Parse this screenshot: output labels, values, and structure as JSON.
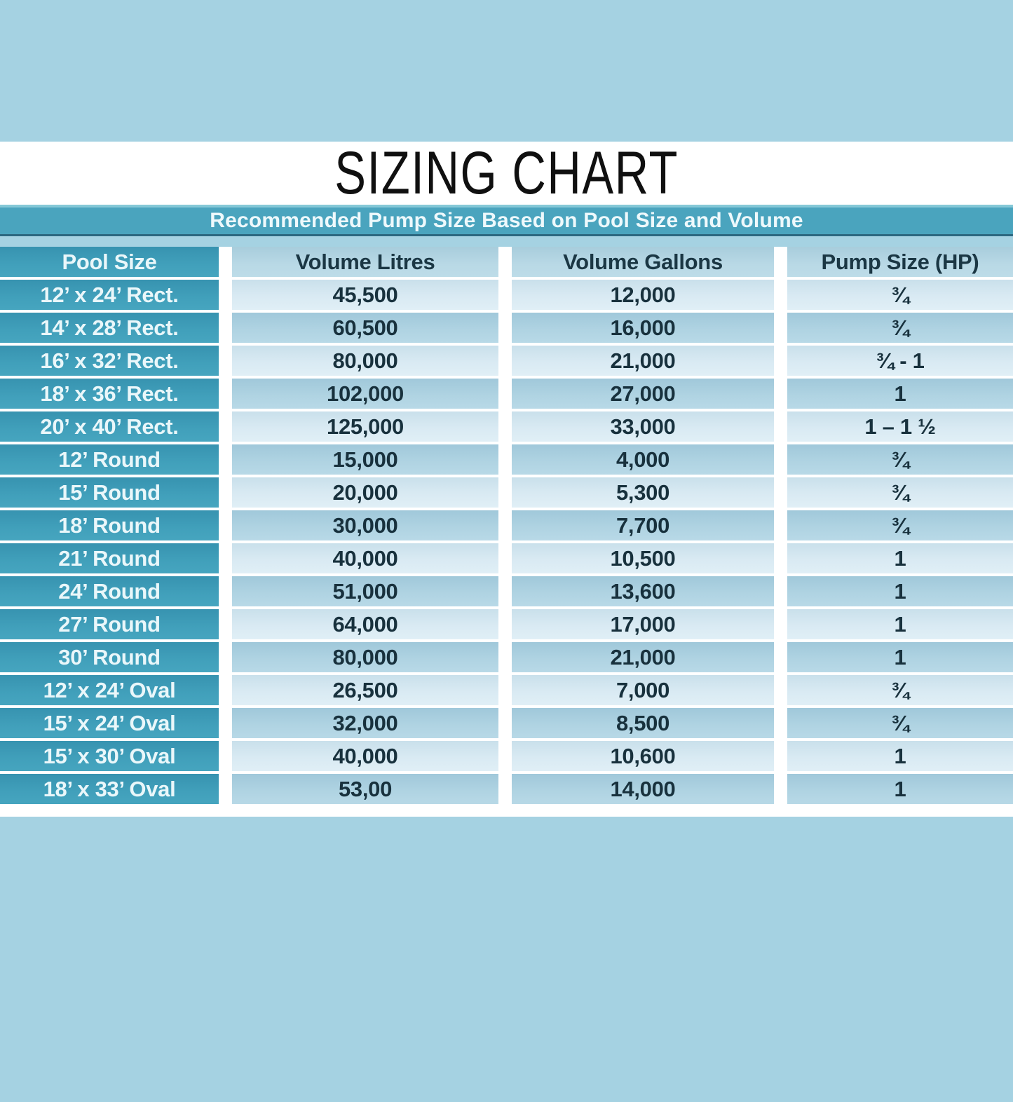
{
  "title": "SIZING CHART",
  "banner": "Recommended Pump Size Based on Pool Size and Volume",
  "table": {
    "columns": [
      "Pool Size",
      "Volume Litres",
      "Volume Gallons",
      "Pump Size (HP)"
    ],
    "rows": [
      {
        "pool": "12’ x 24’ Rect.",
        "litres": "45,500",
        "gallons": "12,000",
        "pump": "¾"
      },
      {
        "pool": "14’ x 28’ Rect.",
        "litres": "60,500",
        "gallons": "16,000",
        "pump": "¾"
      },
      {
        "pool": "16’ x 32’ Rect.",
        "litres": "80,000",
        "gallons": "21,000",
        "pump": "¾ - 1"
      },
      {
        "pool": "18’ x 36’ Rect.",
        "litres": "102,000",
        "gallons": "27,000",
        "pump": "1"
      },
      {
        "pool": "20’ x 40’ Rect.",
        "litres": "125,000",
        "gallons": "33,000",
        "pump": "1 – 1 ½"
      },
      {
        "pool": "12’ Round",
        "litres": "15,000",
        "gallons": "4,000",
        "pump": "¾"
      },
      {
        "pool": "15’ Round",
        "litres": "20,000",
        "gallons": "5,300",
        "pump": "¾"
      },
      {
        "pool": "18’ Round",
        "litres": "30,000",
        "gallons": "7,700",
        "pump": "¾"
      },
      {
        "pool": "21’ Round",
        "litres": "40,000",
        "gallons": "10,500",
        "pump": "1"
      },
      {
        "pool": "24’ Round",
        "litres": "51,000",
        "gallons": "13,600",
        "pump": "1"
      },
      {
        "pool": "27’ Round",
        "litres": "64,000",
        "gallons": "17,000",
        "pump": "1"
      },
      {
        "pool": "30’ Round",
        "litres": "80,000",
        "gallons": "21,000",
        "pump": "1"
      },
      {
        "pool": "12’ x 24’ Oval",
        "litres": "26,500",
        "gallons": "7,000",
        "pump": "¾"
      },
      {
        "pool": "15’ x 24’ Oval",
        "litres": "32,000",
        "gallons": "8,500",
        "pump": "¾"
      },
      {
        "pool": "15’ x 30’ Oval",
        "litres": "40,000",
        "gallons": "10,600",
        "pump": "1"
      },
      {
        "pool": "18’ x 33’ Oval",
        "litres": "53,00",
        "gallons": "14,000",
        "pump": "1"
      }
    ]
  },
  "colors": {
    "page_background": "#a5d2e2",
    "title_band": "#ffffff",
    "banner_teal": "#4aa4be",
    "banner_top_stripe": "#85c8d7",
    "banner_bottom_border": "#2c6880",
    "pool_column_teal": "#3d9cb8",
    "row_light": "#d5e8f1",
    "row_dark": "#abd0e0",
    "header_light": "#b4d6e3",
    "text_dark": "#18313d",
    "text_white": "#eef9fc"
  },
  "chart_data": {
    "type": "table",
    "title": "SIZING CHART",
    "subtitle": "Recommended Pump Size Based on Pool Size and Volume",
    "columns": [
      "Pool Size",
      "Volume Litres",
      "Volume Gallons",
      "Pump Size (HP)"
    ],
    "rows": [
      [
        "12’ x 24’ Rect.",
        "45,500",
        "12,000",
        "¾"
      ],
      [
        "14’ x 28’ Rect.",
        "60,500",
        "16,000",
        "¾"
      ],
      [
        "16’ x 32’ Rect.",
        "80,000",
        "21,000",
        "¾ - 1"
      ],
      [
        "18’ x 36’ Rect.",
        "102,000",
        "27,000",
        "1"
      ],
      [
        "20’ x 40’ Rect.",
        "125,000",
        "33,000",
        "1 – 1 ½"
      ],
      [
        "12’ Round",
        "15,000",
        "4,000",
        "¾"
      ],
      [
        "15’ Round",
        "20,000",
        "5,300",
        "¾"
      ],
      [
        "18’ Round",
        "30,000",
        "7,700",
        "¾"
      ],
      [
        "21’ Round",
        "40,000",
        "10,500",
        "1"
      ],
      [
        "24’ Round",
        "51,000",
        "13,600",
        "1"
      ],
      [
        "27’ Round",
        "64,000",
        "17,000",
        "1"
      ],
      [
        "30’ Round",
        "80,000",
        "21,000",
        "1"
      ],
      [
        "12’ x 24’ Oval",
        "26,500",
        "7,000",
        "¾"
      ],
      [
        "15’ x 24’ Oval",
        "32,000",
        "8,500",
        "¾"
      ],
      [
        "15’ x 30’ Oval",
        "40,000",
        "10,600",
        "1"
      ],
      [
        "18’ x 33’ Oval",
        "53,00",
        "14,000",
        "1"
      ]
    ]
  }
}
